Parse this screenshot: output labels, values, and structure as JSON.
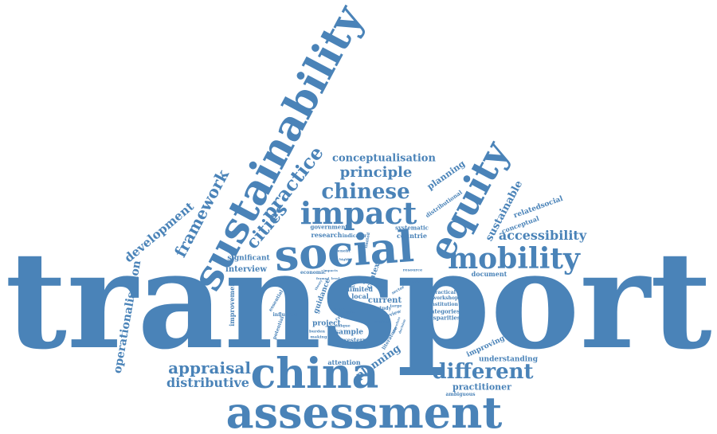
{
  "colors": {
    "background": "#ffffff",
    "word": "#4a83b8"
  },
  "words": [
    "transport",
    "assessment",
    "china",
    "social",
    "sustainability",
    "equity",
    "impact",
    "mobility",
    "chinese",
    "different",
    "appraisal",
    "distributive",
    "accessibility",
    "framework",
    "practice",
    "cities",
    "principle",
    "conceptualisation",
    "sustainable",
    "development",
    "operationalisation",
    "planning",
    "planning",
    "practitioner",
    "understanding",
    "improving",
    "interview",
    "significant",
    "document",
    "current",
    "context",
    "guidance",
    "improvement",
    "project",
    "sample",
    "attention",
    "relatedsocial",
    "conceptual",
    "distributional",
    "research",
    "government",
    "countrie",
    "systematic",
    "indicator",
    "limited",
    "local",
    "group",
    "economic",
    "institution",
    "categories",
    "disparities",
    "practical",
    "workshop",
    "ambiguous",
    "western",
    "review",
    "literature",
    "study",
    "critical",
    "influence",
    "potential",
    "essential",
    "making",
    "burden",
    "analysis",
    "unique",
    "benefit",
    "limited",
    "resource",
    "sector",
    "targe",
    "framed",
    "highly",
    "decision",
    "therefore",
    "provision",
    "impacts",
    "level",
    "theory",
    "clear",
    "ideal",
    "finally",
    "recent",
    "equal"
  ]
}
